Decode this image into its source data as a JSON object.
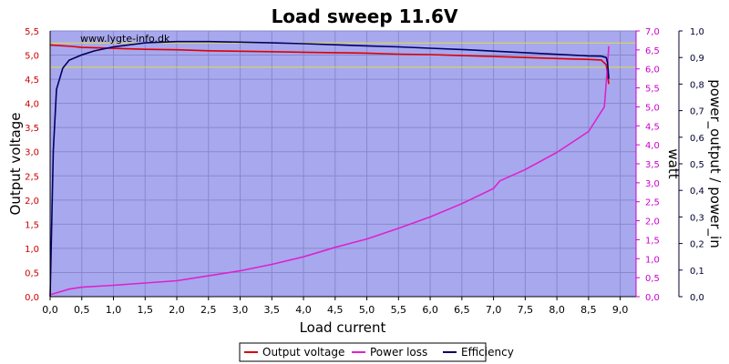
{
  "chart_data": {
    "type": "line",
    "title": "Load sweep 11.6V",
    "watermark": "www.lygte-info.dk",
    "xlabel": "Load current",
    "y_left_label": "Output voltage",
    "y_right1_label": "watt",
    "y_right2_label": "power_output / power_in",
    "xlim": [
      0,
      9.25
    ],
    "y_left_lim": [
      0,
      5.5
    ],
    "y_right1_lim": [
      0,
      7.0
    ],
    "y_right2_lim": [
      0,
      1.0
    ],
    "x_ticks": [
      "0,0",
      "0,5",
      "1,0",
      "1,5",
      "2,0",
      "2,5",
      "3,0",
      "3,5",
      "4,0",
      "4,5",
      "5,0",
      "5,5",
      "6,0",
      "6,5",
      "7,0",
      "7,5",
      "8,0",
      "8,5",
      "9,0"
    ],
    "y_left_ticks": [
      "0,0",
      "0,5",
      "1,0",
      "1,5",
      "2,0",
      "2,5",
      "3,0",
      "3,5",
      "4,0",
      "4,5",
      "5,0",
      "5,5"
    ],
    "y_right1_ticks": [
      "0,0",
      "0,5",
      "1,0",
      "1,5",
      "2,0",
      "2,5",
      "3,0",
      "3,5",
      "4,0",
      "4,5",
      "5,0",
      "5,5",
      "6,0",
      "6,5",
      "7,0"
    ],
    "y_right2_ticks": [
      "0,0",
      "0,1",
      "0,2",
      "0,3",
      "0,4",
      "0,5",
      "0,6",
      "0,7",
      "0,8",
      "0,9",
      "1,0"
    ],
    "reference_lines_left": [
      5.25,
      4.75
    ],
    "grid": true,
    "legend_position": "bottom-center",
    "colors": {
      "plot_bg": "#a8a8ee",
      "grid": "#8888cc",
      "voltage": "#dd0000",
      "power_loss": "#dd22cc",
      "efficiency": "#000066",
      "ref_line": "#dddd44"
    },
    "series": [
      {
        "name": "Output voltage",
        "axis": "left",
        "x": [
          0,
          0.35,
          0.5,
          1.0,
          1.5,
          2.0,
          2.5,
          3.0,
          3.5,
          4.0,
          4.5,
          5.0,
          5.5,
          6.0,
          6.5,
          7.0,
          7.5,
          8.0,
          8.5,
          8.7,
          8.78,
          8.82
        ],
        "y": [
          5.21,
          5.18,
          5.16,
          5.14,
          5.12,
          5.11,
          5.09,
          5.08,
          5.07,
          5.06,
          5.05,
          5.04,
          5.02,
          5.01,
          4.99,
          4.97,
          4.95,
          4.93,
          4.91,
          4.9,
          4.8,
          4.4
        ]
      },
      {
        "name": "Power loss",
        "axis": "right1",
        "x": [
          0,
          0.3,
          0.5,
          1.0,
          1.5,
          2.0,
          2.5,
          3.0,
          3.5,
          4.0,
          4.5,
          5.0,
          5.5,
          6.0,
          6.5,
          7.0,
          7.1,
          7.5,
          8.0,
          8.5,
          8.75,
          8.78,
          8.8,
          8.82
        ],
        "y": [
          0.05,
          0.2,
          0.25,
          0.3,
          0.36,
          0.42,
          0.55,
          0.68,
          0.85,
          1.05,
          1.3,
          1.52,
          1.8,
          2.1,
          2.45,
          2.85,
          3.05,
          3.35,
          3.8,
          4.35,
          5.0,
          5.65,
          6.1,
          6.6
        ]
      },
      {
        "name": "Efficiency",
        "axis": "right2",
        "x": [
          0,
          0.05,
          0.1,
          0.2,
          0.3,
          0.4,
          0.5,
          0.7,
          1.0,
          1.5,
          2.0,
          2.5,
          3.0,
          3.5,
          4.0,
          4.5,
          5.0,
          5.5,
          6.0,
          6.5,
          7.0,
          7.5,
          8.0,
          8.5,
          8.7,
          8.78,
          8.8,
          8.82
        ],
        "y": [
          0,
          0.55,
          0.78,
          0.86,
          0.89,
          0.9,
          0.91,
          0.925,
          0.94,
          0.955,
          0.96,
          0.96,
          0.958,
          0.955,
          0.952,
          0.948,
          0.944,
          0.94,
          0.935,
          0.93,
          0.924,
          0.918,
          0.912,
          0.906,
          0.905,
          0.9,
          0.88,
          0.82
        ]
      }
    ]
  }
}
